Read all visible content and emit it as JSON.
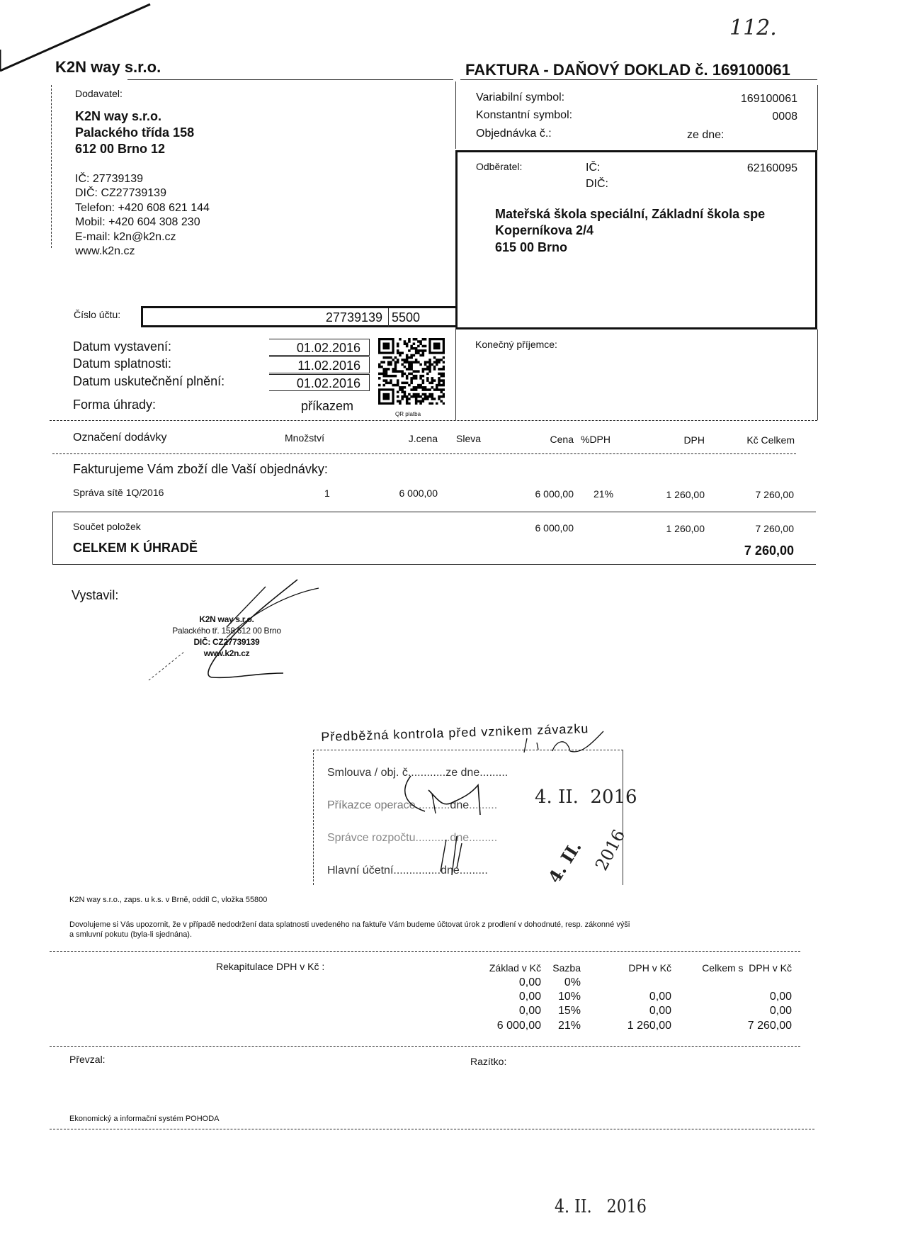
{
  "header": {
    "company": "K2N way s.r.o.",
    "doc_title": "FAKTURA - DAŇOVÝ DOKLAD č. 169100061",
    "handwritten_page_mark": "112."
  },
  "supplier": {
    "label": "Dodavatel:",
    "name": "K2N way s.r.o.",
    "street": "Palackého třída 158",
    "city": "612 00 Brno 12",
    "ic": "IČ: 27739139",
    "dic": "DIČ: CZ27739139",
    "phone": "Telefon: +420 608 621 144",
    "mobile": "Mobil: +420 604 308 230",
    "email": "E-mail: k2n@k2n.cz",
    "web": "www.k2n.cz"
  },
  "symbols": {
    "variable_label": "Variabilní symbol:",
    "variable_value": "169100061",
    "constant_label": "Konstantní symbol:",
    "constant_value": "0008",
    "order_label": "Objednávka č.:",
    "order_date_label": "ze dne:"
  },
  "customer": {
    "label": "Odběratel:",
    "ic_label": "IČ:",
    "ic_value": "62160095",
    "dic_label": "DIČ:",
    "name": "Mateřská škola speciální, Základní škola spe",
    "street": "Koperníkova 2/4",
    "city": "615 00 Brno"
  },
  "account": {
    "label": "Číslo účtu:",
    "number": "27739139",
    "bank_code": "5500"
  },
  "final_recipient_label": "Konečný příjemce:",
  "dates": {
    "issued_label": "Datum vystavení:",
    "issued": "01.02.2016",
    "due_label": "Datum splatnosti:",
    "due": "11.02.2016",
    "taxable_label": "Datum uskutečnění plnění:",
    "taxable": "01.02.2016",
    "payment_label": "Forma úhrady:",
    "payment": "příkazem",
    "qr_label": "QR platba"
  },
  "items": {
    "columns": [
      "Označení dodávky",
      "Množství",
      "J.cena",
      "Sleva",
      "Cena",
      "%DPH",
      "DPH",
      "Kč Celkem"
    ],
    "intro": "Fakturujeme Vám zboží dle Vaší objednávky:",
    "rows": [
      {
        "name": "Správa sítě 1Q/2016",
        "qty": "1",
        "unit_price": "6 000,00",
        "discount": "",
        "price": "6 000,00",
        "vat_rate": "21%",
        "vat": "1 260,00",
        "total": "7 260,00"
      }
    ]
  },
  "totals": {
    "sum_label": "Součet položek",
    "sum_price": "6 000,00",
    "sum_vat": "1 260,00",
    "sum_total": "7 260,00",
    "due_label": "CELKEM K ÚHRADĚ",
    "due_value": "7 260,00"
  },
  "issuer": {
    "label": "Vystavil:",
    "stamp_line1": "K2N way s.r.o.",
    "stamp_line2": "Palackého tř. 158  612 00 Brno",
    "stamp_line3": "DIČ: CZ27739139",
    "stamp_line4": "www.k2n.cz"
  },
  "control_stamp": {
    "title": "Předběžná kontrola před vznikem závazku",
    "row1": "Smlouva / obj. č.",
    "row1_date_label": "ze dne",
    "row2": "Příkazce operace",
    "row2_date_label": "dne",
    "row2_date": "4. II.  2016",
    "row3": "Správce rozpočtu",
    "row3_date_label": "dne",
    "row3_stamp": "2016",
    "row4": "Hlavní účetní",
    "row4_date_label": "dne",
    "row4_stamp": "4. II."
  },
  "footer": {
    "registration": "K2N way s.r.o., zaps. u k.s. v Brně, oddíl C, vložka 55800",
    "notice_line1": "Dovolujeme si Vás upozornit, že v případě nedodržení data splatnosti uvedeného na faktuře Vám budeme účtovat úrok z prodlení v dohodnuté, resp. zákonné výši",
    "notice_line2": "a smluvní pokutu (byla-li sjednána).",
    "vat_summary_label": "Rekapitulace DPH v Kč :",
    "vat_columns": [
      "Základ v Kč",
      "Sazba",
      "DPH v Kč",
      "Celkem s  DPH v Kč"
    ],
    "vat_rows": [
      {
        "base": "0,00",
        "rate": "0%",
        "vat": "",
        "total": ""
      },
      {
        "base": "0,00",
        "rate": "10%",
        "vat": "0,00",
        "total": "0,00"
      },
      {
        "base": "0,00",
        "rate": "15%",
        "vat": "0,00",
        "total": "0,00"
      },
      {
        "base": "6 000,00",
        "rate": "21%",
        "vat": "1 260,00",
        "total": "7 260,00"
      }
    ],
    "received_label": "Převzal:",
    "stamp_label": "Razítko:",
    "system": "Ekonomický a informační systém POHODA"
  },
  "handwritten_date": "4. II.   2016"
}
